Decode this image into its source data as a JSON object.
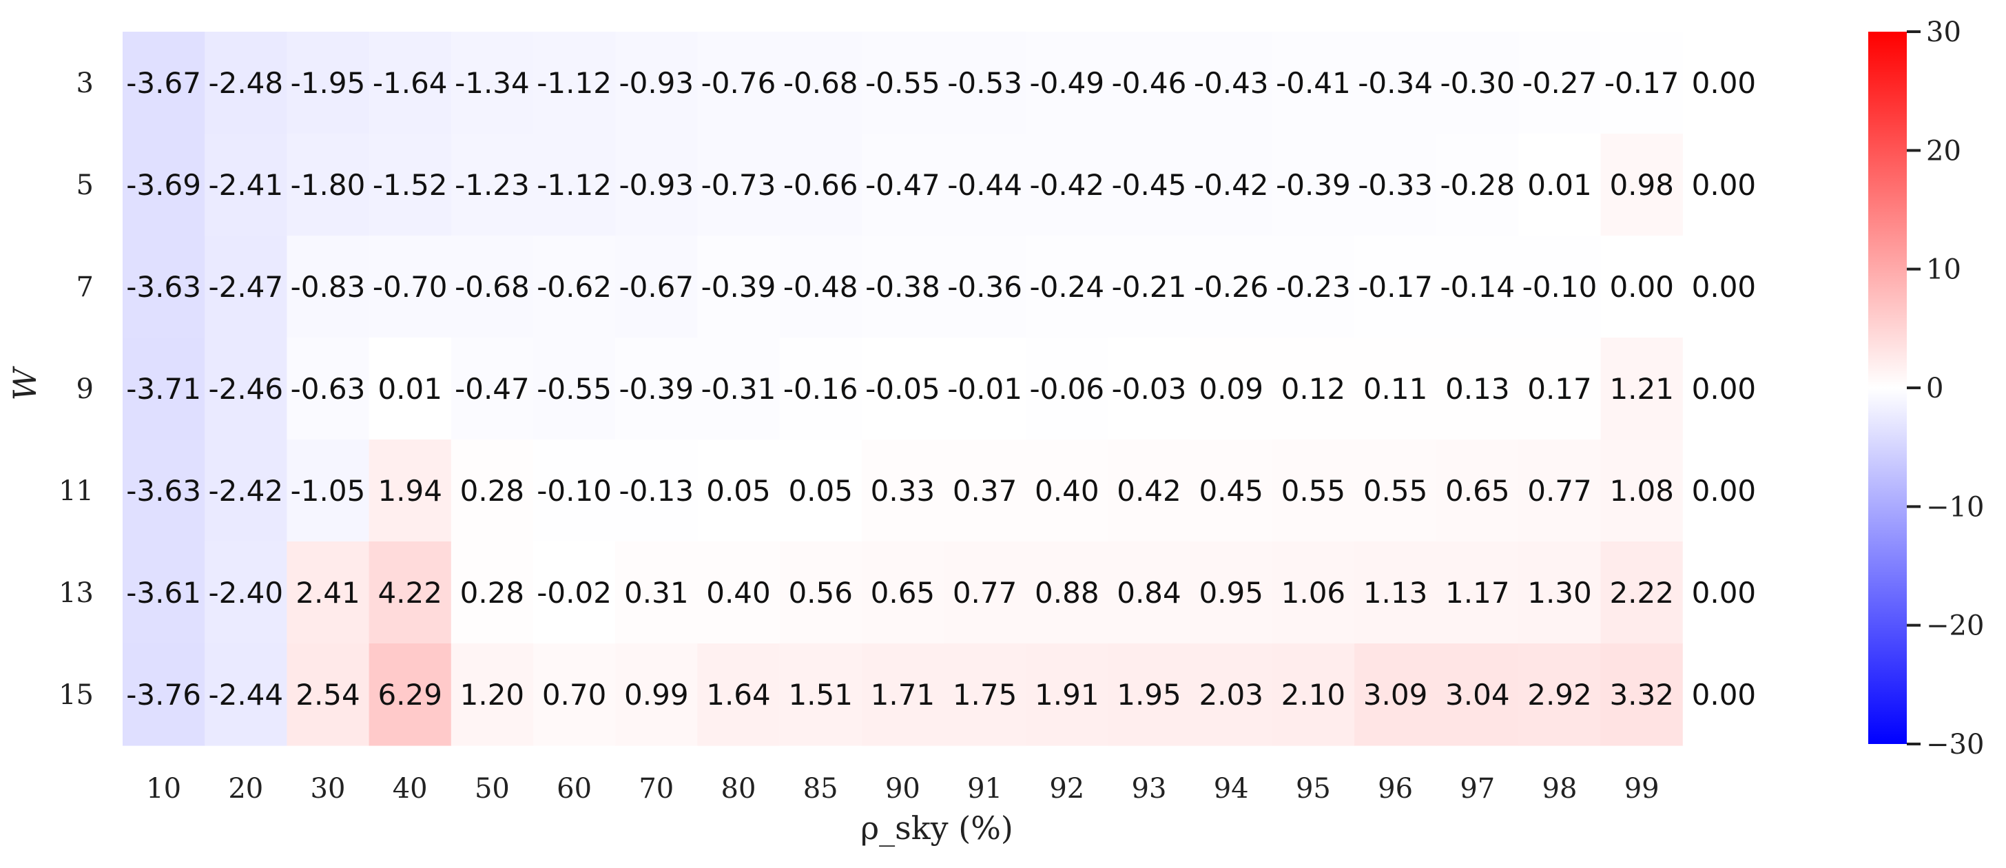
{
  "chart_data": {
    "type": "heatmap",
    "title": "",
    "xlabel": "ρ_sky (%)",
    "ylabel": "W",
    "x_ticks": [
      "10",
      "20",
      "30",
      "40",
      "50",
      "60",
      "70",
      "80",
      "85",
      "90",
      "91",
      "92",
      "93",
      "94",
      "95",
      "96",
      "97",
      "98",
      "99",
      ""
    ],
    "y_ticks": [
      "3",
      "5",
      "7",
      "9",
      "11",
      "13",
      "15"
    ],
    "values": [
      [
        -3.67,
        -2.48,
        -1.95,
        -1.64,
        -1.34,
        -1.12,
        -0.93,
        -0.76,
        -0.68,
        -0.55,
        -0.53,
        -0.49,
        -0.46,
        -0.43,
        -0.41,
        -0.34,
        -0.3,
        -0.27,
        -0.17,
        0.0
      ],
      [
        -3.69,
        -2.41,
        -1.8,
        -1.52,
        -1.23,
        -1.12,
        -0.93,
        -0.73,
        -0.66,
        -0.47,
        -0.44,
        -0.42,
        -0.45,
        -0.42,
        -0.39,
        -0.33,
        -0.28,
        0.01,
        0.98,
        0.0
      ],
      [
        -3.63,
        -2.47,
        -0.83,
        -0.7,
        -0.68,
        -0.62,
        -0.67,
        -0.39,
        -0.48,
        -0.38,
        -0.36,
        -0.24,
        -0.21,
        -0.26,
        -0.23,
        -0.17,
        -0.14,
        -0.1,
        0.0,
        0.0
      ],
      [
        -3.71,
        -2.46,
        -0.63,
        0.01,
        -0.47,
        -0.55,
        -0.39,
        -0.31,
        -0.16,
        -0.05,
        -0.01,
        -0.06,
        -0.03,
        0.09,
        0.12,
        0.11,
        0.13,
        0.17,
        1.21,
        0.0
      ],
      [
        -3.63,
        -2.42,
        -1.05,
        1.94,
        0.28,
        -0.1,
        -0.13,
        0.05,
        0.05,
        0.33,
        0.37,
        0.4,
        0.42,
        0.45,
        0.55,
        0.55,
        0.65,
        0.77,
        1.08,
        0.0
      ],
      [
        -3.61,
        -2.4,
        2.41,
        4.22,
        0.28,
        -0.02,
        0.31,
        0.4,
        0.56,
        0.65,
        0.77,
        0.88,
        0.84,
        0.95,
        1.06,
        1.13,
        1.17,
        1.3,
        2.22,
        0.0
      ],
      [
        -3.76,
        -2.44,
        2.54,
        6.29,
        1.2,
        0.7,
        0.99,
        1.64,
        1.51,
        1.71,
        1.75,
        1.91,
        1.95,
        2.03,
        2.1,
        3.09,
        3.04,
        2.92,
        3.32,
        0.0
      ]
    ],
    "value_format": "2 decimals",
    "colorbar": {
      "colormap": "bwr",
      "range": [
        -30,
        30
      ],
      "ticks": [
        30,
        20,
        10,
        0,
        -10,
        -20,
        -30
      ],
      "tick_labels": [
        "30",
        "20",
        "10",
        "0",
        "−10",
        "−20",
        "−30"
      ],
      "low_color": "#0000ff",
      "mid_color": "#ffffff",
      "high_color": "#ff0000"
    },
    "grid": false,
    "legend": "colorbar at right"
  }
}
